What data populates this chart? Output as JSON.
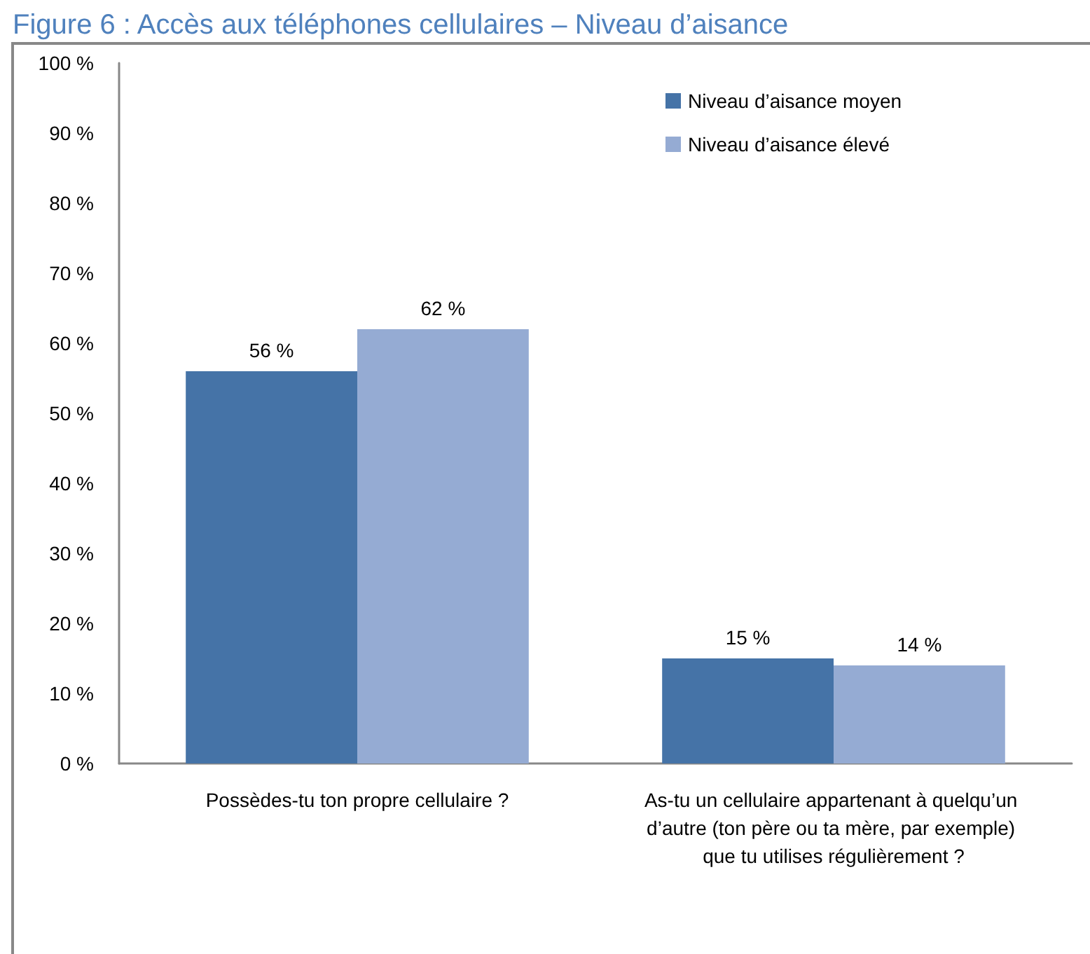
{
  "chart_data": {
    "type": "bar",
    "title": "Figure 6 : Accès aux téléphones cellulaires – Niveau d’aisance",
    "categories": [
      "Possèdes-tu ton propre cellulaire ?",
      "As-tu un cellulaire appartenant à quelqu’un d’autre (ton père ou ta mère, par exemple) que tu utilises régulièrement ?"
    ],
    "series": [
      {
        "name": "Niveau d’aisance moyen",
        "color": "#4573a7",
        "values": [
          56,
          15
        ],
        "value_labels": [
          "56 %",
          "15 %"
        ]
      },
      {
        "name": "Niveau d’aisance élevé",
        "color": "#95abd3",
        "values": [
          62,
          14
        ],
        "value_labels": [
          "62 %",
          "14 %"
        ]
      }
    ],
    "ylim": [
      0,
      100
    ],
    "yticks": [
      {
        "value": 0,
        "label": "0 %"
      },
      {
        "value": 10,
        "label": "10 %"
      },
      {
        "value": 20,
        "label": "20 %"
      },
      {
        "value": 30,
        "label": "30 %"
      },
      {
        "value": 40,
        "label": "40 %"
      },
      {
        "value": 50,
        "label": "50 %"
      },
      {
        "value": 60,
        "label": "60 %"
      },
      {
        "value": 70,
        "label": "70 %"
      },
      {
        "value": 80,
        "label": "80 %"
      },
      {
        "value": 90,
        "label": "90 %"
      },
      {
        "value": 100,
        "label": "100 %"
      }
    ],
    "legend": "top right"
  }
}
